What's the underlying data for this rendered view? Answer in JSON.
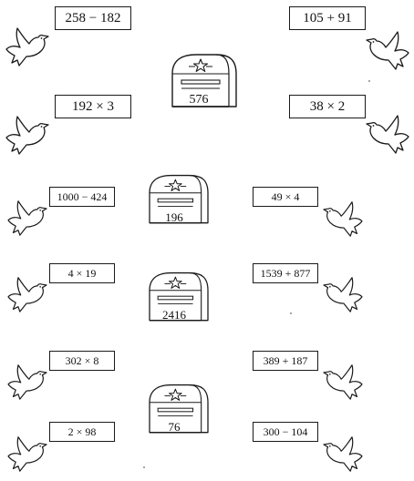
{
  "mailboxes": [
    {
      "number": "576"
    },
    {
      "number": "196"
    },
    {
      "number": "2416"
    },
    {
      "number": "76"
    }
  ],
  "cards": [
    {
      "expr": "258 − 182"
    },
    {
      "expr": "105 + 91"
    },
    {
      "expr": "192 × 3"
    },
    {
      "expr": "38 × 2"
    },
    {
      "expr": "1000 − 424"
    },
    {
      "expr": "49 × 4"
    },
    {
      "expr": "4 × 19"
    },
    {
      "expr": "1539 + 877"
    },
    {
      "expr": "302 × 8"
    },
    {
      "expr": "389 + 187"
    },
    {
      "expr": "2 × 98"
    },
    {
      "expr": "300 − 104"
    }
  ],
  "icons": {
    "dove": "dove-icon",
    "mailbox": "mailbox-icon",
    "star": "star-icon"
  },
  "colors": {
    "ink": "#1a1a1a",
    "paper": "#ffffff"
  }
}
